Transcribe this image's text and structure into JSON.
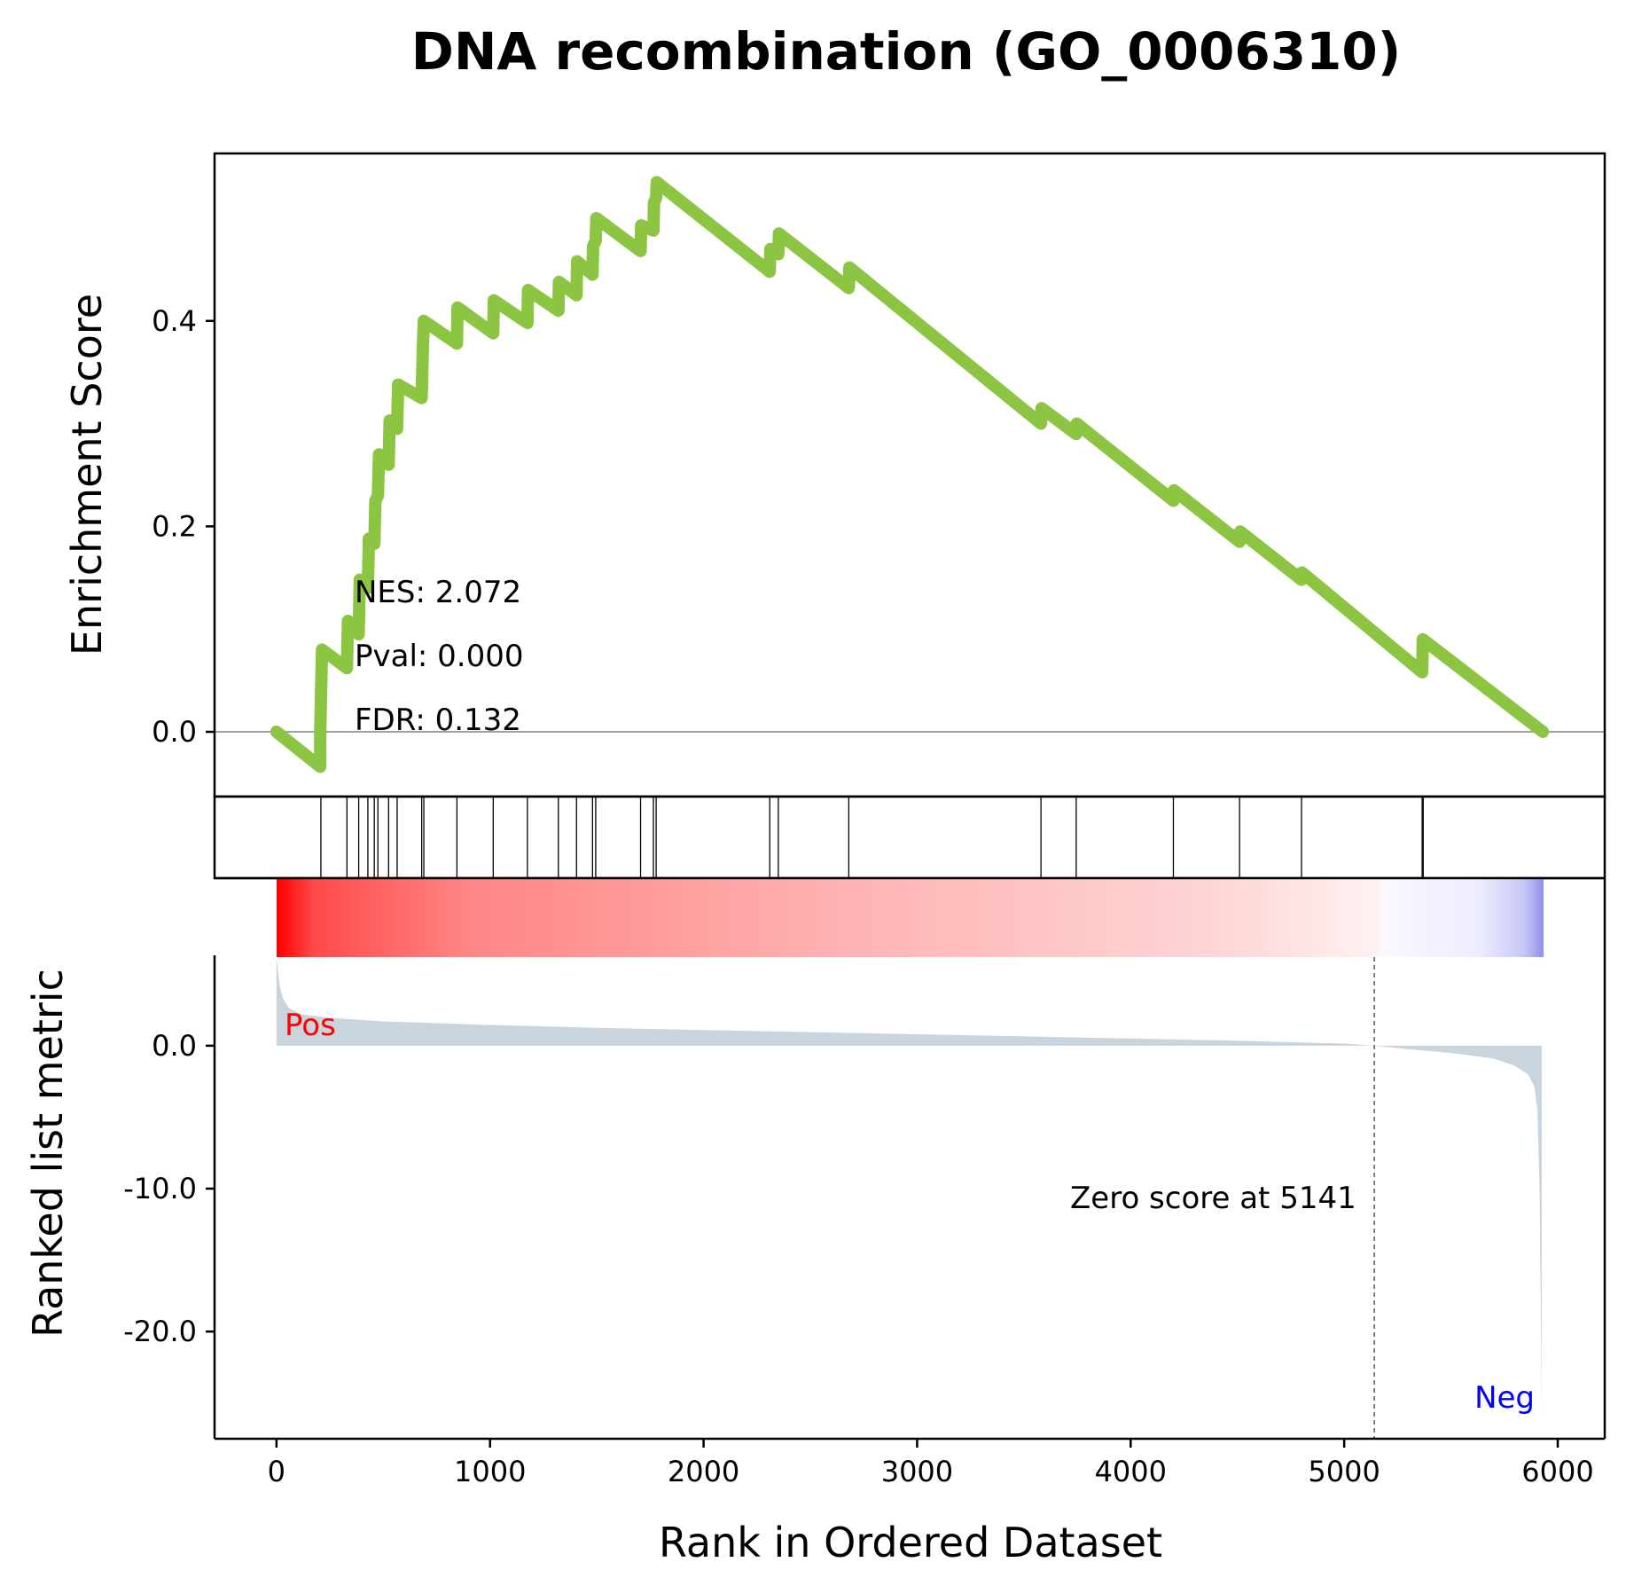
{
  "chart_data": {
    "type": "line",
    "title": "DNA recombination (GO_0006310)",
    "xlabel": "Rank in Ordered Dataset",
    "xlim": [
      -290,
      6220
    ],
    "xticks": [
      0,
      1000,
      2000,
      3000,
      4000,
      5000,
      6000
    ],
    "colors": {
      "es_line": "#8cc542",
      "metric_fill": "#c9d4dc",
      "pos_label": "#ff0000",
      "neg_label": "#0000ff",
      "gradient_pos": "#ff0000",
      "gradient_neg": "#0000ff"
    },
    "enrichment": {
      "ylabel": "Enrichment Score",
      "ylim": [
        -0.063,
        0.563
      ],
      "yticks": [
        "0.0",
        "0.2",
        "0.4"
      ],
      "ytick_values": [
        0.0,
        0.2,
        0.4
      ],
      "points": [
        [
          0,
          0.0
        ],
        [
          205,
          -0.034
        ],
        [
          205,
          0.0
        ],
        [
          213,
          0.08
        ],
        [
          330,
          0.062
        ],
        [
          335,
          0.108
        ],
        [
          385,
          0.095
        ],
        [
          390,
          0.148
        ],
        [
          428,
          0.14
        ],
        [
          433,
          0.188
        ],
        [
          458,
          0.183
        ],
        [
          463,
          0.225
        ],
        [
          475,
          0.23
        ],
        [
          480,
          0.27
        ],
        [
          525,
          0.26
        ],
        [
          530,
          0.303
        ],
        [
          565,
          0.295
        ],
        [
          570,
          0.338
        ],
        [
          680,
          0.325
        ],
        [
          685,
          0.37
        ],
        [
          690,
          0.4
        ],
        [
          845,
          0.378
        ],
        [
          848,
          0.413
        ],
        [
          1015,
          0.388
        ],
        [
          1018,
          0.42
        ],
        [
          1175,
          0.398
        ],
        [
          1178,
          0.43
        ],
        [
          1320,
          0.41
        ],
        [
          1323,
          0.438
        ],
        [
          1405,
          0.425
        ],
        [
          1408,
          0.458
        ],
        [
          1480,
          0.445
        ],
        [
          1483,
          0.473
        ],
        [
          1495,
          0.478
        ],
        [
          1498,
          0.5
        ],
        [
          1705,
          0.468
        ],
        [
          1708,
          0.493
        ],
        [
          1765,
          0.488
        ],
        [
          1768,
          0.515
        ],
        [
          1778,
          0.52
        ],
        [
          1781,
          0.535
        ],
        [
          2310,
          0.448
        ],
        [
          2313,
          0.47
        ],
        [
          2350,
          0.465
        ],
        [
          2353,
          0.485
        ],
        [
          2680,
          0.432
        ],
        [
          2683,
          0.452
        ],
        [
          3580,
          0.3
        ],
        [
          3583,
          0.315
        ],
        [
          3745,
          0.29
        ],
        [
          3748,
          0.3
        ],
        [
          4200,
          0.225
        ],
        [
          4203,
          0.235
        ],
        [
          4510,
          0.185
        ],
        [
          4513,
          0.195
        ],
        [
          4800,
          0.148
        ],
        [
          4803,
          0.155
        ],
        [
          5365,
          0.058
        ],
        [
          5368,
          0.09
        ],
        [
          5930,
          0.0
        ]
      ],
      "annotations": {
        "nes": "NES: 2.072",
        "pval": "Pval: 0.000",
        "fdr": "FDR: 0.132"
      }
    },
    "hits": [
      208,
      330,
      385,
      428,
      458,
      475,
      525,
      565,
      680,
      690,
      845,
      1015,
      1175,
      1320,
      1405,
      1480,
      1495,
      1705,
      1765,
      1778,
      2310,
      2350,
      2680,
      3580,
      3745,
      4200,
      4510,
      4800,
      5365,
      5370
    ],
    "ranked_metric": {
      "ylabel": "Ranked list metric",
      "ylim": [
        -27.5,
        6.2
      ],
      "yticks": [
        "0.0",
        "-10.0",
        "-20.0"
      ],
      "ytick_values": [
        0.0,
        -10.0,
        -20.0
      ],
      "points": [
        [
          0,
          6.2
        ],
        [
          5,
          5.5
        ],
        [
          15,
          4.2
        ],
        [
          30,
          3.3
        ],
        [
          60,
          2.6
        ],
        [
          120,
          2.2
        ],
        [
          250,
          1.95
        ],
        [
          500,
          1.7
        ],
        [
          1000,
          1.45
        ],
        [
          1500,
          1.25
        ],
        [
          2000,
          1.1
        ],
        [
          2500,
          0.95
        ],
        [
          3000,
          0.8
        ],
        [
          3500,
          0.65
        ],
        [
          4000,
          0.5
        ],
        [
          4500,
          0.35
        ],
        [
          5000,
          0.15
        ],
        [
          5141,
          0.0
        ],
        [
          5300,
          -0.25
        ],
        [
          5500,
          -0.5
        ],
        [
          5700,
          -0.9
        ],
        [
          5800,
          -1.4
        ],
        [
          5860,
          -2.0
        ],
        [
          5890,
          -2.8
        ],
        [
          5905,
          -4.5
        ],
        [
          5915,
          -10.0
        ],
        [
          5922,
          -20.0
        ],
        [
          5925,
          -26.2
        ]
      ],
      "zero_score_rank": 5141,
      "zero_score_label": "Zero score at 5141",
      "pos_label": "Pos",
      "neg_label": "Neg"
    }
  }
}
